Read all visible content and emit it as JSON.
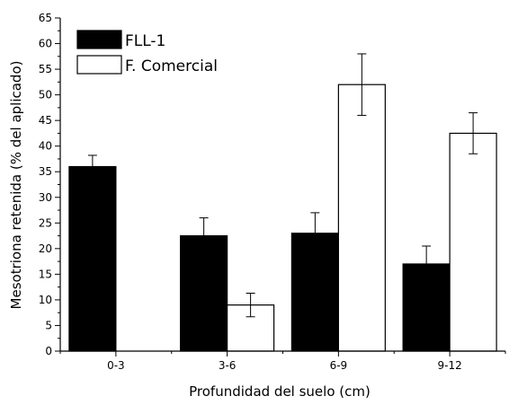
{
  "chart_data": {
    "type": "bar",
    "title": "",
    "xlabel": "Profundidad del suelo (cm)",
    "ylabel": "Mesotriona retenida (% del aplicado)",
    "categories": [
      "0-3",
      "3-6",
      "6-9",
      "9-12"
    ],
    "series": [
      {
        "name": "FLL-1",
        "values": [
          36,
          22.5,
          23,
          17
        ],
        "error": [
          2.2,
          3.5,
          4,
          3.5
        ],
        "fill": "#000000"
      },
      {
        "name": "F. Comercial",
        "values": [
          null,
          9,
          52,
          42.5
        ],
        "error": [
          null,
          2.3,
          6,
          4
        ],
        "fill": "#ffffff"
      }
    ],
    "ylim": [
      0,
      65
    ],
    "yticks": [
      0,
      5,
      10,
      15,
      20,
      25,
      30,
      35,
      40,
      45,
      50,
      55,
      60,
      65
    ],
    "grid": false,
    "legend_position": "top-left"
  }
}
